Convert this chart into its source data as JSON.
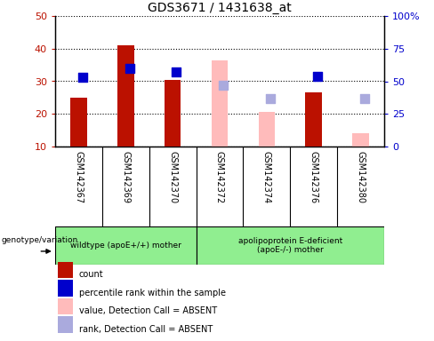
{
  "title": "GDS3671 / 1431638_at",
  "samples": [
    "GSM142367",
    "GSM142369",
    "GSM142370",
    "GSM142372",
    "GSM142374",
    "GSM142376",
    "GSM142380"
  ],
  "count_values": [
    25,
    41,
    30.5,
    null,
    null,
    26.5,
    null
  ],
  "percentile_rank": [
    53,
    60,
    57,
    null,
    null,
    54,
    null
  ],
  "absent_value": [
    null,
    null,
    null,
    36.5,
    20.5,
    null,
    14
  ],
  "absent_rank": [
    null,
    null,
    null,
    47,
    37,
    null,
    37
  ],
  "ylim_left": [
    10,
    50
  ],
  "ylim_right": [
    0,
    100
  ],
  "yticks_left": [
    10,
    20,
    30,
    40,
    50
  ],
  "yticks_right": [
    0,
    25,
    50,
    75,
    100
  ],
  "yticklabels_right": [
    "0",
    "25",
    "50",
    "75",
    "100%"
  ],
  "group1_label": "wildtype (apoE+/+) mother",
  "group2_label": "apolipoprotein E-deficient\n(apoE-/-) mother",
  "genotype_label": "genotype/variation",
  "bar_color_red": "#bb1100",
  "bar_color_pink": "#ffbbbb",
  "dot_color_blue": "#0000cc",
  "dot_color_light_blue": "#aaaadd",
  "bar_width": 0.35,
  "dot_size": 45,
  "bg_gray": "#d0d0d0",
  "bg_green": "#90ee90",
  "plot_bg": "#ffffff"
}
